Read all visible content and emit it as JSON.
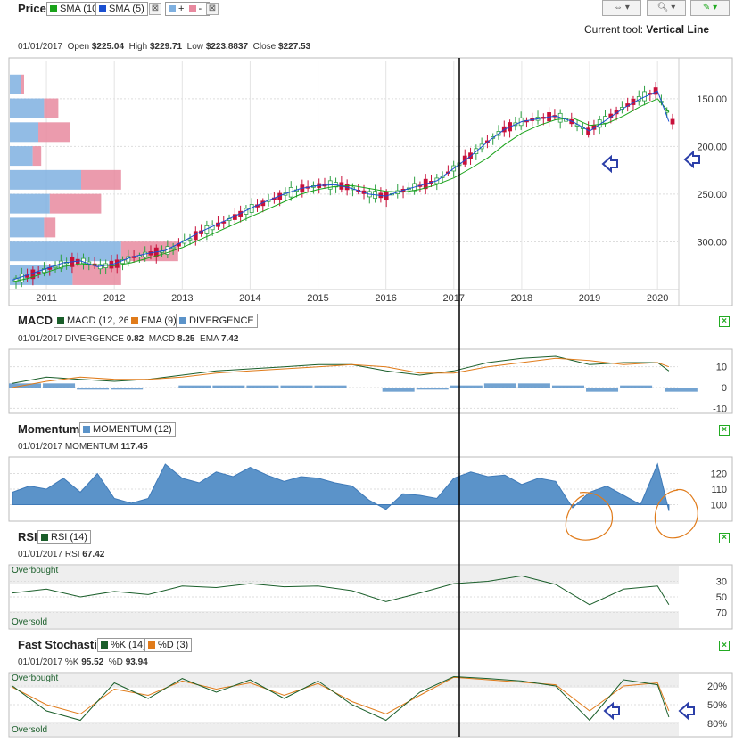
{
  "price_panel": {
    "title": "Price",
    "legend": [
      {
        "label": "SMA (10)",
        "color": "#1aa31a"
      },
      {
        "label": "SMA (5)",
        "color": "#1a4fd1"
      },
      {
        "label": "+",
        "color": "#7fb0e0"
      },
      {
        "label": "-",
        "color": "#e8899f"
      }
    ],
    "date": "01/01/2017",
    "open_label": "Open",
    "open": "$225.04",
    "high_label": "High",
    "high": "$229.71",
    "low_label": "Low",
    "low": "$223.8837",
    "close_label": "Close",
    "close": "$227.53",
    "current_tool_label": "Current tool:",
    "current_tool": "Vertical Line",
    "yticks": [
      "300.00",
      "250.00",
      "200.00",
      "150.00"
    ],
    "xticks": [
      "2011",
      "2012",
      "2013",
      "2014",
      "2015",
      "2016",
      "2017",
      "2018",
      "2019",
      "2020"
    ]
  },
  "macd_panel": {
    "title": "MACD",
    "legend": [
      {
        "label": "MACD (12, 26)",
        "color": "#1a5e2a"
      },
      {
        "label": "EMA (9)",
        "color": "#e07b1a"
      },
      {
        "label": "DIVERGENCE",
        "color": "#5b93c9"
      }
    ],
    "date": "01/01/2017",
    "divergence_label": "DIVERGENCE",
    "divergence": "0.82",
    "macd_label": "MACD",
    "macd": "8.25",
    "ema_label": "EMA",
    "ema": "7.42",
    "yticks": [
      "10",
      "0",
      "-10"
    ]
  },
  "momentum_panel": {
    "title": "Momentum",
    "legend": [
      {
        "label": "MOMENTUM (12)",
        "color": "#5b93c9"
      }
    ],
    "date": "01/01/2017",
    "momentum_label": "MOMENTUM",
    "momentum": "117.45",
    "yticks": [
      "120",
      "110",
      "100"
    ]
  },
  "rsi_panel": {
    "title": "RSI",
    "legend": [
      {
        "label": "RSI (14)",
        "color": "#1a5e2a"
      }
    ],
    "date": "01/01/2017",
    "rsi_label": "RSI",
    "rsi": "67.42",
    "overbought": "Overbought",
    "oversold": "Oversold",
    "yticks": [
      "70",
      "50",
      "30"
    ]
  },
  "stoch_panel": {
    "title": "Fast Stochastic",
    "legend": [
      {
        "label": "%K (14)",
        "color": "#1a5e2a"
      },
      {
        "label": "%D (3)",
        "color": "#e07b1a"
      }
    ],
    "date": "01/01/2017",
    "k_label": "%K",
    "k": "95.52",
    "d_label": "%D",
    "d": "93.94",
    "overbought": "Overbought",
    "oversold": "Oversold",
    "yticks": [
      "80%",
      "50%",
      "20%"
    ]
  },
  "chart_data": [
    {
      "type": "line",
      "title": "Price",
      "x": [
        "2010-07",
        "2010-10",
        "2011-01",
        "2011-04",
        "2011-07",
        "2011-10",
        "2012-01",
        "2012-04",
        "2012-07",
        "2012-10",
        "2013-01",
        "2013-04",
        "2013-07",
        "2013-10",
        "2014-01",
        "2014-04",
        "2014-07",
        "2014-10",
        "2015-01",
        "2015-04",
        "2015-07",
        "2015-10",
        "2016-01",
        "2016-04",
        "2016-07",
        "2016-10",
        "2017-01",
        "2017-04",
        "2017-07",
        "2017-10",
        "2018-01",
        "2018-04",
        "2018-07",
        "2018-10",
        "2019-01",
        "2019-04",
        "2019-07",
        "2019-10",
        "2020-01",
        "2020-03"
      ],
      "series": [
        {
          "name": "SMA (10)",
          "values": [
            108,
            112,
            118,
            124,
            127,
            126,
            125,
            128,
            133,
            138,
            144,
            152,
            160,
            168,
            176,
            184,
            192,
            200,
            205,
            208,
            209,
            206,
            203,
            202,
            205,
            210,
            217,
            227,
            238,
            252,
            264,
            272,
            278,
            280,
            272,
            274,
            282,
            292,
            300,
            286
          ]
        },
        {
          "name": "SMA (5)",
          "values": [
            110,
            116,
            122,
            128,
            130,
            124,
            127,
            134,
            138,
            141,
            150,
            160,
            168,
            176,
            185,
            193,
            200,
            206,
            209,
            210,
            206,
            200,
            198,
            204,
            209,
            214,
            227,
            240,
            255,
            268,
            276,
            279,
            282,
            276,
            266,
            278,
            290,
            300,
            308,
            276
          ]
        }
      ],
      "ylim": [
        100,
        340
      ],
      "yticks": [
        150,
        200,
        250,
        300
      ],
      "volume_by_price": [
        {
          "price": 315,
          "up": 8,
          "down": 2
        },
        {
          "price": 290,
          "up": 24,
          "down": 10
        },
        {
          "price": 265,
          "up": 20,
          "down": 22
        },
        {
          "price": 240,
          "up": 16,
          "down": 6
        },
        {
          "price": 215,
          "up": 50,
          "down": 28
        },
        {
          "price": 190,
          "up": 28,
          "down": 36
        },
        {
          "price": 165,
          "up": 24,
          "down": 8
        },
        {
          "price": 140,
          "up": 78,
          "down": 40
        },
        {
          "price": 115,
          "up": 44,
          "down": 34
        }
      ],
      "annotations": [
        "Vertical Line 2017-01",
        "arrow 2019-01",
        "arrow 2020-03"
      ]
    },
    {
      "type": "line",
      "title": "MACD",
      "x": [
        "2010-07",
        "2011-01",
        "2011-07",
        "2012-01",
        "2012-07",
        "2013-01",
        "2013-07",
        "2014-01",
        "2014-07",
        "2015-01",
        "2015-07",
        "2016-01",
        "2016-07",
        "2017-01",
        "2017-07",
        "2018-01",
        "2018-07",
        "2019-01",
        "2019-07",
        "2020-01",
        "2020-03"
      ],
      "series": [
        {
          "name": "MACD (12, 26)",
          "values": [
            2,
            5,
            4,
            3,
            4,
            6,
            8,
            9,
            10,
            11,
            11,
            8,
            6,
            8,
            12,
            14,
            15,
            11,
            12,
            12,
            8
          ]
        },
        {
          "name": "EMA (9)",
          "values": [
            0,
            3,
            5,
            4,
            4,
            5,
            7,
            8,
            9,
            10,
            11,
            10,
            7,
            7,
            10,
            12,
            14,
            13,
            11,
            12,
            10
          ]
        },
        {
          "name": "DIVERGENCE",
          "values": [
            2,
            2,
            -1,
            -1,
            0,
            1,
            1,
            1,
            1,
            1,
            0,
            -2,
            -1,
            1,
            2,
            2,
            1,
            -2,
            1,
            0,
            -2
          ]
        }
      ],
      "ylim": [
        -12,
        18
      ]
    },
    {
      "type": "area",
      "title": "Momentum",
      "x": [
        "2010-07",
        "2010-10",
        "2011-01",
        "2011-04",
        "2011-07",
        "2011-10",
        "2012-01",
        "2012-04",
        "2012-07",
        "2012-10",
        "2013-01",
        "2013-04",
        "2013-07",
        "2013-10",
        "2014-01",
        "2014-04",
        "2014-07",
        "2014-10",
        "2015-01",
        "2015-04",
        "2015-07",
        "2015-10",
        "2016-01",
        "2016-04",
        "2016-07",
        "2016-10",
        "2017-01",
        "2017-04",
        "2017-07",
        "2017-10",
        "2018-01",
        "2018-04",
        "2018-07",
        "2018-10",
        "2019-01",
        "2019-04",
        "2019-07",
        "2019-10",
        "2020-01",
        "2020-03"
      ],
      "series": [
        {
          "name": "MOMENTUM (12)",
          "values": [
            108,
            112,
            110,
            117,
            108,
            120,
            104,
            101,
            104,
            126,
            117,
            114,
            121,
            118,
            124,
            119,
            115,
            118,
            117,
            114,
            112,
            103,
            97,
            107,
            106,
            104,
            117,
            121,
            118,
            119,
            113,
            117,
            115,
            98,
            108,
            112,
            106,
            100,
            126,
            96
          ]
        }
      ],
      "ylim": [
        90,
        130
      ]
    },
    {
      "type": "line",
      "title": "RSI",
      "x": [
        "2010-07",
        "2011-01",
        "2011-07",
        "2012-01",
        "2012-07",
        "2013-01",
        "2013-07",
        "2014-01",
        "2014-07",
        "2015-01",
        "2015-07",
        "2016-01",
        "2016-07",
        "2017-01",
        "2017-07",
        "2018-01",
        "2018-07",
        "2019-01",
        "2019-07",
        "2020-01",
        "2020-03"
      ],
      "series": [
        {
          "name": "RSI (14)",
          "values": [
            55,
            60,
            50,
            57,
            53,
            64,
            62,
            67,
            63,
            64,
            58,
            44,
            55,
            67,
            70,
            77,
            66,
            40,
            60,
            64,
            40
          ]
        }
      ],
      "ylim": [
        10,
        90
      ],
      "yticks": [
        30,
        50,
        70
      ]
    },
    {
      "type": "line",
      "title": "Fast Stochastic",
      "x": [
        "2010-07",
        "2011-01",
        "2011-07",
        "2012-01",
        "2012-07",
        "2013-01",
        "2013-07",
        "2014-01",
        "2014-07",
        "2015-01",
        "2015-07",
        "2016-01",
        "2016-07",
        "2017-01",
        "2017-07",
        "2018-01",
        "2018-07",
        "2019-01",
        "2019-07",
        "2020-01",
        "2020-03"
      ],
      "series": [
        {
          "name": "%K (14)",
          "values": [
            80,
            40,
            25,
            85,
            60,
            92,
            70,
            90,
            60,
            88,
            50,
            25,
            70,
            95,
            92,
            88,
            80,
            25,
            90,
            82,
            30
          ]
        },
        {
          "name": "%D (3)",
          "values": [
            78,
            50,
            35,
            75,
            65,
            88,
            75,
            85,
            65,
            84,
            55,
            35,
            65,
            94,
            90,
            86,
            82,
            40,
            80,
            85,
            40
          ]
        }
      ],
      "ylim": [
        0,
        100
      ],
      "yticks": [
        20,
        50,
        80
      ]
    }
  ]
}
